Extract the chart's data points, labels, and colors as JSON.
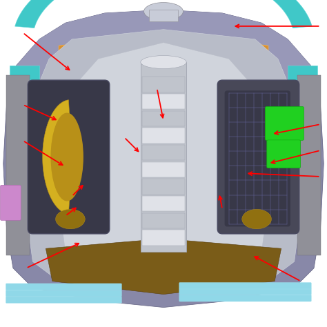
{
  "background_color": "#ffffff",
  "figsize": [
    4.74,
    4.74
  ],
  "dpi": 100,
  "arrows": [
    [
      0.98,
      0.92,
      0.71,
      0.92
    ],
    [
      0.07,
      0.9,
      0.22,
      0.78
    ],
    [
      0.07,
      0.68,
      0.18,
      0.63
    ],
    [
      0.07,
      0.57,
      0.2,
      0.49
    ],
    [
      0.48,
      0.73,
      0.5,
      0.63
    ],
    [
      0.38,
      0.58,
      0.43,
      0.53
    ],
    [
      0.98,
      0.62,
      0.83,
      0.59
    ],
    [
      0.98,
      0.54,
      0.82,
      0.5
    ],
    [
      0.98,
      0.46,
      0.75,
      0.47
    ],
    [
      0.22,
      0.4,
      0.26,
      0.44
    ],
    [
      0.2,
      0.34,
      0.24,
      0.37
    ],
    [
      0.68,
      0.36,
      0.67,
      0.41
    ],
    [
      0.08,
      0.18,
      0.25,
      0.26
    ],
    [
      0.92,
      0.14,
      0.77,
      0.22
    ]
  ],
  "colors": {
    "bg_outer": "#d8d8e8",
    "bg_white": "#f0f0f5",
    "outer_shell": "#8888a8",
    "outer_shell_dark": "#606080",
    "cyan_ring": "#40c8c8",
    "cyan_light": "#60d8d8",
    "orange_frame": "#d89030",
    "orange_inner": "#f0a840",
    "vessel_gray": "#b8bcc8",
    "vessel_light": "#d0d4dc",
    "solenoid_silver": "#c0c4cc",
    "solenoid_light": "#e0e2e8",
    "solenoid_dark": "#a0a4b0",
    "left_coil_dark": "#383848",
    "left_coil_mid": "#484860",
    "gold_bright": "#d4b020",
    "gold_mid": "#b89018",
    "gold_dark": "#907010",
    "right_coil_dark": "#484858",
    "right_coil_grid": "#585870",
    "green_bright": "#20d020",
    "green_dark": "#10b010",
    "pink": "#cc88cc",
    "cyan_pipe": "#30c0c0",
    "light_blue": "#90d8e8",
    "light_blue2": "#a0e0ee",
    "brown_floor": "#7a5c18",
    "brown_dark": "#5a4010",
    "gray_struct": "#909098",
    "silver": "#c8ccd8",
    "purple": "#7060a0"
  }
}
